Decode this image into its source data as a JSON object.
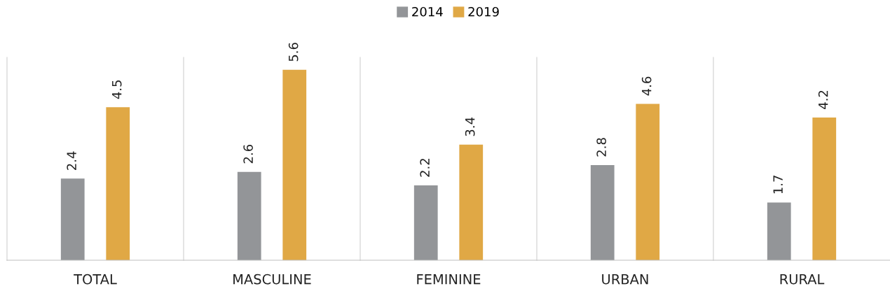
{
  "chart_data": {
    "type": "bar",
    "categories": [
      "TOTAL",
      "MASCULINE",
      "FEMININE",
      "URBAN",
      "RURAL"
    ],
    "series": [
      {
        "name": "2014",
        "color": "#939598",
        "values": [
          2.4,
          2.6,
          2.2,
          2.8,
          1.7
        ]
      },
      {
        "name": "2019",
        "color": "#e0a845",
        "values": [
          4.5,
          5.6,
          3.4,
          4.6,
          4.2
        ]
      }
    ],
    "data_labels": true,
    "legend": "top",
    "grid": "x"
  }
}
